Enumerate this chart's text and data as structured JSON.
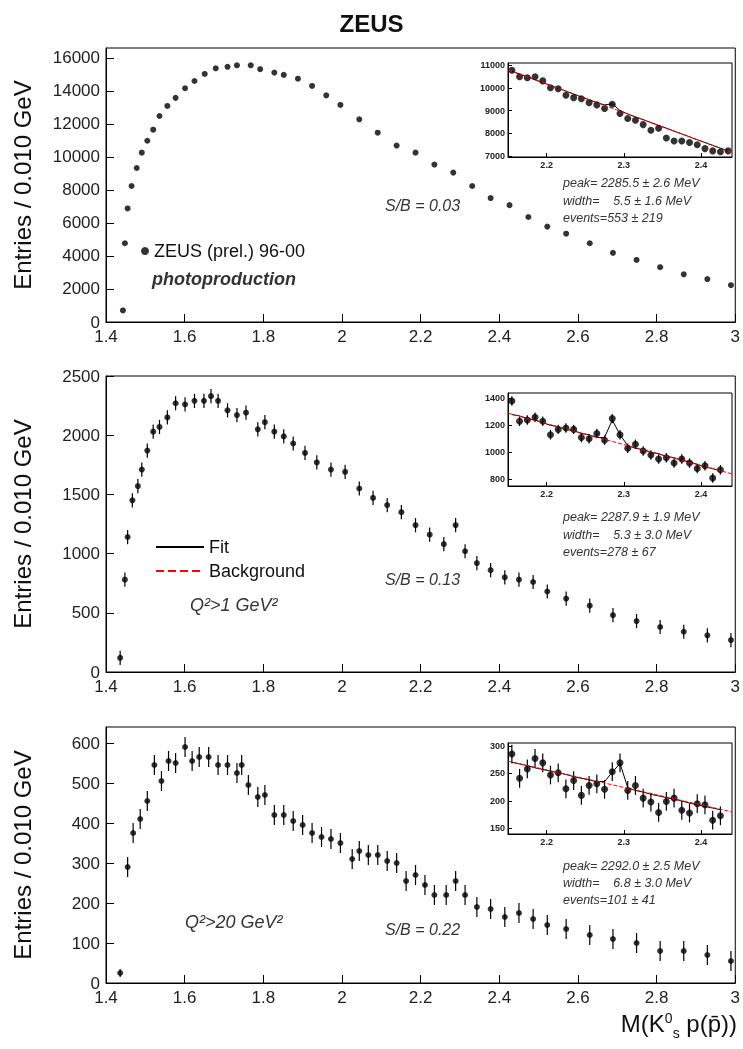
{
  "chart_data": [
    {
      "type": "scatter",
      "title": "ZEUS",
      "ylabel": "Entries / 0.010 GeV",
      "xlim": [
        1.4,
        3
      ],
      "xticks": [
        1.4,
        1.6,
        1.8,
        2,
        2.2,
        2.4,
        2.6,
        2.8,
        3
      ],
      "ylim": [
        0,
        16600
      ],
      "yticks": [
        0,
        2000,
        4000,
        6000,
        8000,
        10000,
        12000,
        14000,
        16000
      ],
      "legend": "bottom left",
      "series": [
        {
          "name": "ZEUS (prel.) 96-00",
          "color": "#000000",
          "marker": "circle",
          "x": [
            1.443,
            1.448,
            1.455,
            1.465,
            1.478,
            1.491,
            1.505,
            1.52,
            1.536,
            1.556,
            1.577,
            1.601,
            1.625,
            1.651,
            1.679,
            1.709,
            1.733,
            1.768,
            1.792,
            1.828,
            1.852,
            1.888,
            1.924,
            1.96,
            1.996,
            2.044,
            2.091,
            2.139,
            2.187,
            2.235,
            2.283,
            2.331,
            2.378,
            2.426,
            2.474,
            2.522,
            2.57,
            2.63,
            2.689,
            2.749,
            2.809,
            2.869,
            2.929,
            2.989
          ],
          "values": [
            700,
            4770,
            6880,
            8240,
            9330,
            10260,
            10980,
            11650,
            12480,
            13090,
            13580,
            14160,
            14600,
            15030,
            15370,
            15460,
            15550,
            15550,
            15320,
            15110,
            14970,
            14740,
            14300,
            13730,
            13150,
            12280,
            11470,
            10690,
            10260,
            9540,
            9050,
            8240,
            7510,
            7080,
            6360,
            5780,
            5350,
            4770,
            4190,
            3760,
            3320,
            2890,
            2600,
            2230
          ]
        }
      ],
      "annotations": [
        "S/B = 0.03",
        "photoproduction",
        "peak= 2285.5 ± 2.6 MeV",
        "width=    5.5 ± 1.6 MeV",
        "events=553 ± 219"
      ]
    },
    {
      "type": "scatter",
      "xlim": [
        2.15,
        2.44
      ],
      "xticks": [
        2.2,
        2.3,
        2.4
      ],
      "ylim": [
        6950,
        11100
      ],
      "yticks": [
        7000,
        8000,
        9000,
        10000,
        11000
      ],
      "series": [
        {
          "color": "#000000",
          "marker": "circle",
          "x": [
            2.155,
            2.165,
            2.175,
            2.185,
            2.195,
            2.205,
            2.215,
            2.225,
            2.235,
            2.245,
            2.255,
            2.265,
            2.275,
            2.285,
            2.295,
            2.305,
            2.315,
            2.325,
            2.335,
            2.345,
            2.355,
            2.365,
            2.375,
            2.385,
            2.395,
            2.405,
            2.415,
            2.425,
            2.435
          ],
          "values": [
            10780,
            10490,
            10450,
            10490,
            10310,
            10010,
            9960,
            9680,
            9570,
            9520,
            9350,
            9250,
            9090,
            9280,
            8870,
            8650,
            8570,
            8380,
            8130,
            8220,
            7790,
            7660,
            7660,
            7590,
            7490,
            7320,
            7220,
            7180,
            7220
          ]
        },
        {
          "type": "line",
          "color": "#000000",
          "line_style": "solid",
          "x": [
            2.155,
            2.165,
            2.175,
            2.185,
            2.195,
            2.205,
            2.215,
            2.225,
            2.235,
            2.245,
            2.255,
            2.265,
            2.275,
            2.285,
            2.295,
            2.305,
            2.315,
            2.325,
            2.335,
            2.345,
            2.355,
            2.365,
            2.375,
            2.385,
            2.395,
            2.405,
            2.415,
            2.425,
            2.435
          ],
          "values": [
            10740,
            10610,
            10490,
            10360,
            10230,
            10110,
            9980,
            9860,
            9730,
            9600,
            9480,
            9350,
            9250,
            9300,
            9000,
            8850,
            8720,
            8600,
            8470,
            8340,
            8220,
            8090,
            7970,
            7840,
            7710,
            7590,
            7460,
            7340,
            7210
          ]
        },
        {
          "type": "line",
          "color": "#ff0000",
          "line_style": "dashed",
          "x": [
            2.15,
            2.44
          ],
          "values": [
            10800,
            7150
          ]
        }
      ]
    },
    {
      "type": "scatter",
      "ylabel": "Entries / 0.010 GeV",
      "xlim": [
        1.4,
        3
      ],
      "xticks": [
        1.4,
        1.6,
        1.8,
        2,
        2.2,
        2.4,
        2.6,
        2.8,
        3
      ],
      "ylim": [
        0,
        2500
      ],
      "yticks": [
        0,
        500,
        1000,
        1500,
        2000,
        2500
      ],
      "series": [
        {
          "color": "#000000",
          "marker": "circle",
          "x": [
            1.436,
            1.448,
            1.455,
            1.467,
            1.481,
            1.491,
            1.505,
            1.52,
            1.536,
            1.556,
            1.577,
            1.601,
            1.625,
            1.649,
            1.667,
            1.685,
            1.709,
            1.733,
            1.756,
            1.786,
            1.804,
            1.828,
            1.852,
            1.876,
            1.906,
            1.936,
            1.972,
            2.008,
            2.044,
            2.079,
            2.115,
            2.151,
            2.187,
            2.223,
            2.259,
            2.289,
            2.313,
            2.343,
            2.378,
            2.414,
            2.45,
            2.486,
            2.522,
            2.57,
            2.63,
            2.689,
            2.749,
            2.809,
            2.869,
            2.929,
            2.989
          ],
          "values": [
            120,
            780,
            1140,
            1450,
            1570,
            1710,
            1870,
            2030,
            2070,
            2150,
            2270,
            2260,
            2290,
            2290,
            2330,
            2290,
            2210,
            2170,
            2190,
            2050,
            2110,
            2030,
            1990,
            1930,
            1850,
            1770,
            1710,
            1690,
            1550,
            1470,
            1410,
            1350,
            1240,
            1160,
            1080,
            1240,
            1020,
            920,
            860,
            800,
            780,
            760,
            680,
            620,
            560,
            480,
            430,
            380,
            340,
            310,
            270
          ],
          "errors": [
            60,
            60,
            60,
            60,
            60,
            60,
            60,
            60,
            60,
            60,
            60,
            60,
            60,
            60,
            60,
            60,
            60,
            60,
            60,
            60,
            60,
            60,
            60,
            60,
            60,
            60,
            60,
            60,
            60,
            60,
            60,
            60,
            60,
            60,
            60,
            60,
            60,
            60,
            60,
            60,
            60,
            60,
            60,
            60,
            60,
            60,
            60,
            60,
            60,
            60,
            60
          ]
        }
      ],
      "annotations": [
        "S/B = 0.13",
        "Q²>1 GeV²",
        "peak= 2287.9 ± 1.9 MeV",
        "width=    5.3 ± 3.0 MeV",
        "events=278 ± 67"
      ]
    },
    {
      "type": "scatter",
      "xlim": [
        2.15,
        2.44
      ],
      "xticks": [
        2.2,
        2.3,
        2.4
      ],
      "ylim": [
        750,
        1440
      ],
      "yticks": [
        800,
        1000,
        1200,
        1400
      ],
      "legend": "left",
      "series": [
        {
          "color": "#000000",
          "marker": "circle",
          "x": [
            2.155,
            2.165,
            2.175,
            2.185,
            2.195,
            2.205,
            2.215,
            2.225,
            2.235,
            2.245,
            2.255,
            2.265,
            2.275,
            2.285,
            2.295,
            2.305,
            2.315,
            2.325,
            2.335,
            2.345,
            2.355,
            2.365,
            2.375,
            2.385,
            2.395,
            2.405,
            2.415,
            2.425
          ],
          "values": [
            1380,
            1230,
            1240,
            1260,
            1230,
            1130,
            1170,
            1180,
            1170,
            1110,
            1100,
            1140,
            1090,
            1250,
            1130,
            1030,
            1060,
            1010,
            980,
            950,
            960,
            920,
            950,
            920,
            880,
            900,
            810,
            870
          ],
          "errors": [
            35,
            35,
            35,
            35,
            35,
            35,
            35,
            35,
            35,
            35,
            35,
            35,
            35,
            35,
            35,
            35,
            35,
            35,
            35,
            35,
            35,
            35,
            35,
            35,
            35,
            35,
            35,
            35
          ]
        },
        {
          "type": "line",
          "name": "Fit",
          "color": "#000000",
          "line_style": "solid",
          "x": [
            2.155,
            2.165,
            2.175,
            2.185,
            2.195,
            2.205,
            2.215,
            2.225,
            2.235,
            2.245,
            2.255,
            2.265,
            2.275,
            2.285,
            2.295,
            2.305,
            2.315,
            2.325,
            2.335,
            2.345,
            2.355,
            2.365,
            2.375,
            2.385,
            2.395,
            2.405,
            2.415,
            2.425
          ],
          "values": [
            1280,
            1270,
            1250,
            1240,
            1220,
            1200,
            1190,
            1170,
            1160,
            1140,
            1130,
            1110,
            1110,
            1240,
            1130,
            1050,
            1030,
            1020,
            1000,
            990,
            970,
            960,
            940,
            930,
            910,
            890,
            880,
            860
          ]
        },
        {
          "type": "line",
          "name": "Background",
          "color": "#ff0000",
          "line_style": "dashed",
          "x": [
            2.15,
            2.44
          ],
          "values": [
            1290,
            840
          ]
        }
      ]
    },
    {
      "type": "scatter",
      "ylabel": "Entries / 0.010 GeV",
      "xlabel": "M(K$^{0}$$_{s}$ p(p̄))",
      "xlim": [
        1.4,
        3
      ],
      "xticks": [
        1.4,
        1.6,
        1.8,
        2,
        2.2,
        2.4,
        2.6,
        2.8,
        3
      ],
      "ylim": [
        0,
        640
      ],
      "yticks": [
        0,
        100,
        200,
        300,
        400,
        500,
        600
      ],
      "series": [
        {
          "color": "#000000",
          "marker": "circle",
          "x": [
            1.436,
            1.455,
            1.469,
            1.487,
            1.505,
            1.523,
            1.541,
            1.559,
            1.577,
            1.601,
            1.619,
            1.637,
            1.661,
            1.685,
            1.709,
            1.733,
            1.745,
            1.762,
            1.786,
            1.804,
            1.828,
            1.852,
            1.876,
            1.9,
            1.924,
            1.948,
            1.972,
            1.996,
            2.026,
            2.044,
            2.067,
            2.091,
            2.115,
            2.139,
            2.163,
            2.187,
            2.211,
            2.235,
            2.265,
            2.289,
            2.313,
            2.343,
            2.378,
            2.414,
            2.45,
            2.486,
            2.522,
            2.57,
            2.63,
            2.689,
            2.749,
            2.809,
            2.869,
            2.929,
            2.989
          ],
          "values": [
            25,
            290,
            375,
            410,
            455,
            545,
            505,
            555,
            550,
            590,
            555,
            565,
            565,
            545,
            545,
            525,
            545,
            495,
            465,
            470,
            420,
            420,
            405,
            395,
            375,
            365,
            360,
            350,
            310,
            330,
            320,
            320,
            305,
            300,
            255,
            270,
            245,
            220,
            220,
            255,
            220,
            190,
            185,
            165,
            175,
            160,
            145,
            135,
            120,
            110,
            100,
            80,
            80,
            70,
            55
          ],
          "errors": [
            10,
            25,
            25,
            25,
            25,
            25,
            25,
            25,
            25,
            25,
            25,
            25,
            25,
            25,
            25,
            25,
            25,
            25,
            25,
            25,
            25,
            25,
            25,
            25,
            25,
            25,
            25,
            25,
            25,
            25,
            25,
            25,
            25,
            25,
            25,
            25,
            25,
            25,
            25,
            25,
            25,
            25,
            25,
            25,
            25,
            25,
            25,
            25,
            25,
            25,
            25,
            25,
            25,
            25,
            25
          ]
        }
      ],
      "annotations": [
        "S/B = 0.22",
        "Q²>20 GeV²",
        "peak= 2292.0 ± 2.5 MeV",
        "width=    6.8 ± 3.0 MeV",
        "events=101 ± 41"
      ]
    },
    {
      "type": "scatter",
      "xlim": [
        2.15,
        2.44
      ],
      "xticks": [
        2.2,
        2.3,
        2.4
      ],
      "ylim": [
        140,
        305
      ],
      "yticks": [
        150,
        200,
        250,
        300
      ],
      "series": [
        {
          "color": "#000000",
          "marker": "circle",
          "x": [
            2.155,
            2.165,
            2.175,
            2.185,
            2.195,
            2.205,
            2.215,
            2.225,
            2.235,
            2.245,
            2.255,
            2.265,
            2.275,
            2.285,
            2.295,
            2.305,
            2.315,
            2.325,
            2.335,
            2.345,
            2.355,
            2.365,
            2.375,
            2.385,
            2.395,
            2.405,
            2.415,
            2.425
          ],
          "values": [
            285,
            241,
            258,
            277,
            269,
            247,
            251,
            222,
            237,
            210,
            228,
            231,
            221,
            253,
            269,
            219,
            228,
            205,
            198,
            179,
            199,
            205,
            183,
            178,
            195,
            193,
            165,
            173
          ],
          "errors": [
            17,
            17,
            17,
            17,
            17,
            17,
            17,
            17,
            17,
            17,
            17,
            17,
            17,
            17,
            17,
            17,
            17,
            17,
            17,
            17,
            17,
            17,
            17,
            17,
            17,
            17,
            17,
            17
          ]
        },
        {
          "type": "line",
          "color": "#000000",
          "line_style": "solid",
          "x": [
            2.155,
            2.165,
            2.175,
            2.185,
            2.195,
            2.205,
            2.215,
            2.225,
            2.235,
            2.245,
            2.255,
            2.265,
            2.275,
            2.285,
            2.295,
            2.305,
            2.315,
            2.325,
            2.335,
            2.345,
            2.355,
            2.365,
            2.375,
            2.385,
            2.395,
            2.405,
            2.415,
            2.425
          ],
          "values": [
            270,
            267,
            264,
            260,
            257,
            254,
            251,
            248,
            244,
            241,
            238,
            235,
            235,
            252,
            268,
            224,
            219,
            216,
            212,
            209,
            206,
            203,
            200,
            196,
            193,
            190,
            187,
            184
          ]
        },
        {
          "type": "line",
          "color": "#ff0000",
          "line_style": "dashed",
          "x": [
            2.15,
            2.44
          ],
          "values": [
            272,
            180
          ]
        }
      ]
    }
  ]
}
